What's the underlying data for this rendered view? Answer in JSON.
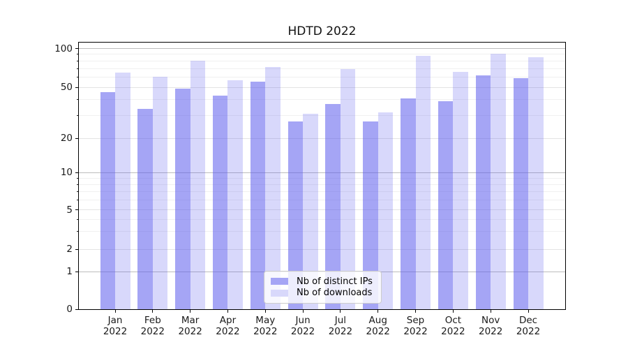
{
  "title": "HDTD 2022",
  "chart_data": {
    "type": "bar",
    "title": "HDTD 2022",
    "categories": [
      "Jan",
      "Feb",
      "Mar",
      "Apr",
      "May",
      "Jun",
      "Jul",
      "Aug",
      "Sep",
      "Oct",
      "Nov",
      "Dec"
    ],
    "year": "2022",
    "series": [
      {
        "name": "Nb of distinct IPs",
        "values": [
          46,
          34,
          49,
          43,
          55,
          27,
          37,
          27,
          41,
          39,
          62,
          59
        ],
        "base_color": "#5b5bed",
        "opacity": 0.55,
        "legend_swatch": "#a5a5f5"
      },
      {
        "name": "Nb of downloads",
        "values": [
          65,
          60,
          80,
          57,
          72,
          31,
          69,
          32,
          88,
          66,
          91,
          86
        ],
        "base_color": "#5b5bed",
        "opacity": 0.24,
        "legend_swatch": "#d8d8fb"
      }
    ],
    "xlabel": "",
    "ylabel": "",
    "yscale": "symlog",
    "yticks": [
      0,
      1,
      2,
      5,
      10,
      20,
      50,
      100
    ],
    "minor_gridlines": [
      3,
      4,
      6,
      7,
      8,
      9,
      30,
      40,
      60,
      70,
      80,
      90
    ],
    "ylim": [
      0,
      105
    ],
    "grid": "both",
    "legend_position": "lower center"
  }
}
